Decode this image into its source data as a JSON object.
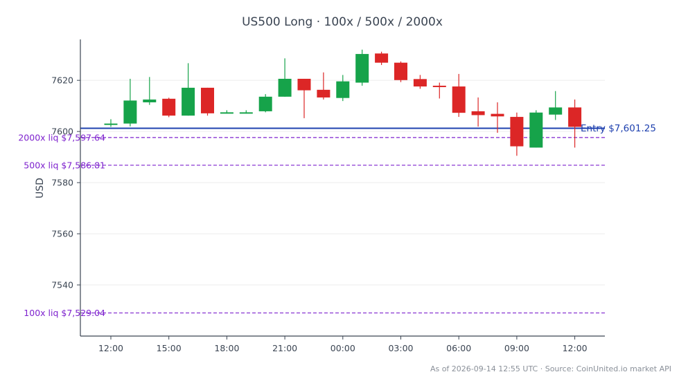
{
  "chart_data": {
    "type": "candlestick",
    "title": "US500 Long · 100x / 500x / 2000x",
    "ylabel": "USD",
    "xlabel": "",
    "ylim": [
      7520,
      7636
    ],
    "yticks": [
      7540,
      7560,
      7580,
      7600,
      7620
    ],
    "x_tick_labels": [
      "12:00",
      "15:00",
      "18:00",
      "21:00",
      "00:00",
      "03:00",
      "06:00",
      "09:00",
      "12:00"
    ],
    "x_tick_candle_index": [
      0,
      3,
      6,
      9,
      12,
      15,
      18,
      21,
      24
    ],
    "candles": [
      {
        "o": 7602.6,
        "h": 7604.8,
        "l": 7601.8,
        "c": 7603.1
      },
      {
        "o": 7603.1,
        "h": 7620.6,
        "l": 7602.0,
        "c": 7612.1
      },
      {
        "o": 7611.4,
        "h": 7621.3,
        "l": 7610.4,
        "c": 7612.5
      },
      {
        "o": 7612.8,
        "h": 7613.2,
        "l": 7605.6,
        "c": 7606.2
      },
      {
        "o": 7606.2,
        "h": 7626.7,
        "l": 7606.2,
        "c": 7617.1
      },
      {
        "o": 7617.1,
        "h": 7617.1,
        "l": 7606.2,
        "c": 7607.1
      },
      {
        "o": 7607.0,
        "h": 7608.3,
        "l": 7607.0,
        "c": 7607.5
      },
      {
        "o": 7607.0,
        "h": 7608.3,
        "l": 7607.0,
        "c": 7607.5
      },
      {
        "o": 7607.9,
        "h": 7614.6,
        "l": 7607.5,
        "c": 7613.6
      },
      {
        "o": 7613.6,
        "h": 7628.6,
        "l": 7613.6,
        "c": 7620.6
      },
      {
        "o": 7620.6,
        "h": 7620.6,
        "l": 7605.2,
        "c": 7616.1
      },
      {
        "o": 7616.3,
        "h": 7623.1,
        "l": 7612.5,
        "c": 7613.3
      },
      {
        "o": 7613.1,
        "h": 7622.1,
        "l": 7611.9,
        "c": 7619.6
      },
      {
        "o": 7619.1,
        "h": 7632.0,
        "l": 7617.9,
        "c": 7630.3
      },
      {
        "o": 7630.5,
        "h": 7631.2,
        "l": 7626.0,
        "c": 7626.9
      },
      {
        "o": 7626.9,
        "h": 7627.4,
        "l": 7619.3,
        "c": 7620.1
      },
      {
        "o": 7620.5,
        "h": 7622.1,
        "l": 7616.7,
        "c": 7617.6
      },
      {
        "o": 7617.9,
        "h": 7619.1,
        "l": 7612.9,
        "c": 7617.6
      },
      {
        "o": 7617.6,
        "h": 7622.5,
        "l": 7605.7,
        "c": 7607.3
      },
      {
        "o": 7607.9,
        "h": 7613.3,
        "l": 7601.9,
        "c": 7606.4
      },
      {
        "o": 7606.9,
        "h": 7611.4,
        "l": 7599.5,
        "c": 7605.9
      },
      {
        "o": 7605.7,
        "h": 7607.4,
        "l": 7590.5,
        "c": 7594.2
      },
      {
        "o": 7593.7,
        "h": 7608.3,
        "l": 7593.7,
        "c": 7607.4
      },
      {
        "o": 7606.6,
        "h": 7615.8,
        "l": 7604.5,
        "c": 7609.4
      },
      {
        "o": 7609.4,
        "h": 7612.5,
        "l": 7593.7,
        "c": 7601.8
      }
    ],
    "colors": {
      "up": "#16a34a",
      "down": "#dc2626",
      "entry": "#1e40af",
      "liq": "#7e22ce",
      "grid": "#ececec",
      "axis": "#3a4452"
    },
    "entry": {
      "label": "Entry $7,601.25",
      "value": 7601.25
    },
    "liquidations": [
      {
        "label": "2000x liq $7,597.64",
        "value": 7597.64
      },
      {
        "label": "500x liq $7,586.81",
        "value": 7586.81
      },
      {
        "label": "100x liq $7,529.04",
        "value": 7529.04
      }
    ],
    "footer": "As of 2026-09-14 12:55 UTC · Source: CoinUnited.io market API"
  }
}
